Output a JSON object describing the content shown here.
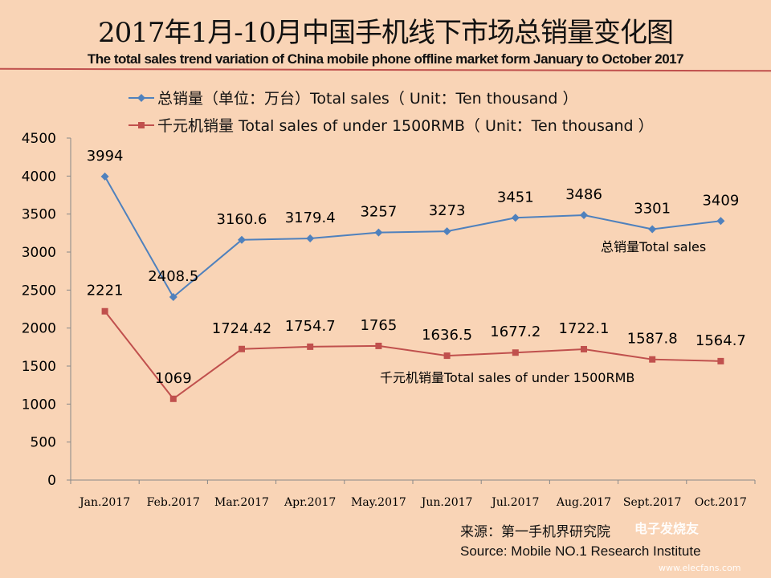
{
  "title": "2017年1月-10月中国手机线下市场总销量变化图",
  "subtitle": "The total sales trend variation of China mobile phone offline market form January to October 2017",
  "legend": [
    {
      "label": "总销量（单位：万台）Total sales（  Unit：Ten thousand ）",
      "color": "#4f81bd",
      "marker": "diamond"
    },
    {
      "label": "千元机销量 Total sales of under 1500RMB（  Unit：Ten thousand ）",
      "color": "#c0504d",
      "marker": "square"
    }
  ],
  "source": {
    "cn": "来源：第一手机界研究院",
    "en": "Source: Mobile NO.1 Research Institute"
  },
  "watermark": {
    "name": "电子发烧友",
    "url": "www.elecfans.com"
  },
  "chart_data": {
    "type": "line",
    "categories": [
      "Jan.2017",
      "Feb.2017",
      "Mar.2017",
      "Apr.2017",
      "May.2017",
      "Jun.2017",
      "Jul.2017",
      "Aug.2017",
      "Sept.2017",
      "Oct.2017"
    ],
    "ylim": [
      0,
      4500
    ],
    "yticks": [
      0,
      500,
      1000,
      1500,
      2000,
      2500,
      3000,
      3500,
      4000,
      4500
    ],
    "grid": false,
    "legend_position": "top",
    "series": [
      {
        "name": "总销量（单位：万台）Total sales（  Unit：Ten thousand ）",
        "annotation": "总销量Total sales",
        "color": "#4f81bd",
        "values": [
          3994,
          2408.5,
          3160.6,
          3179.4,
          3257,
          3273,
          3451,
          3486,
          3301,
          3409
        ],
        "labels": [
          "3994",
          "2408.5",
          "3160.6",
          "3179.4",
          "3257",
          "3273",
          "3451",
          "3486",
          "3301",
          "3409"
        ]
      },
      {
        "name": "千元机销量 Total sales of under 1500RMB（  Unit：Ten thousand ）",
        "annotation": "千元机销量Total sales of under 1500RMB",
        "color": "#c0504d",
        "values": [
          2221,
          1069,
          1724.42,
          1754.7,
          1765,
          1636.5,
          1677.2,
          1722.1,
          1587.8,
          1564.7
        ],
        "labels": [
          "2221",
          "1069",
          "1724.42",
          "1754.7",
          "1765",
          "1636.5",
          "1677.2",
          "1722.1",
          "1587.8",
          "1564.7"
        ]
      }
    ]
  }
}
